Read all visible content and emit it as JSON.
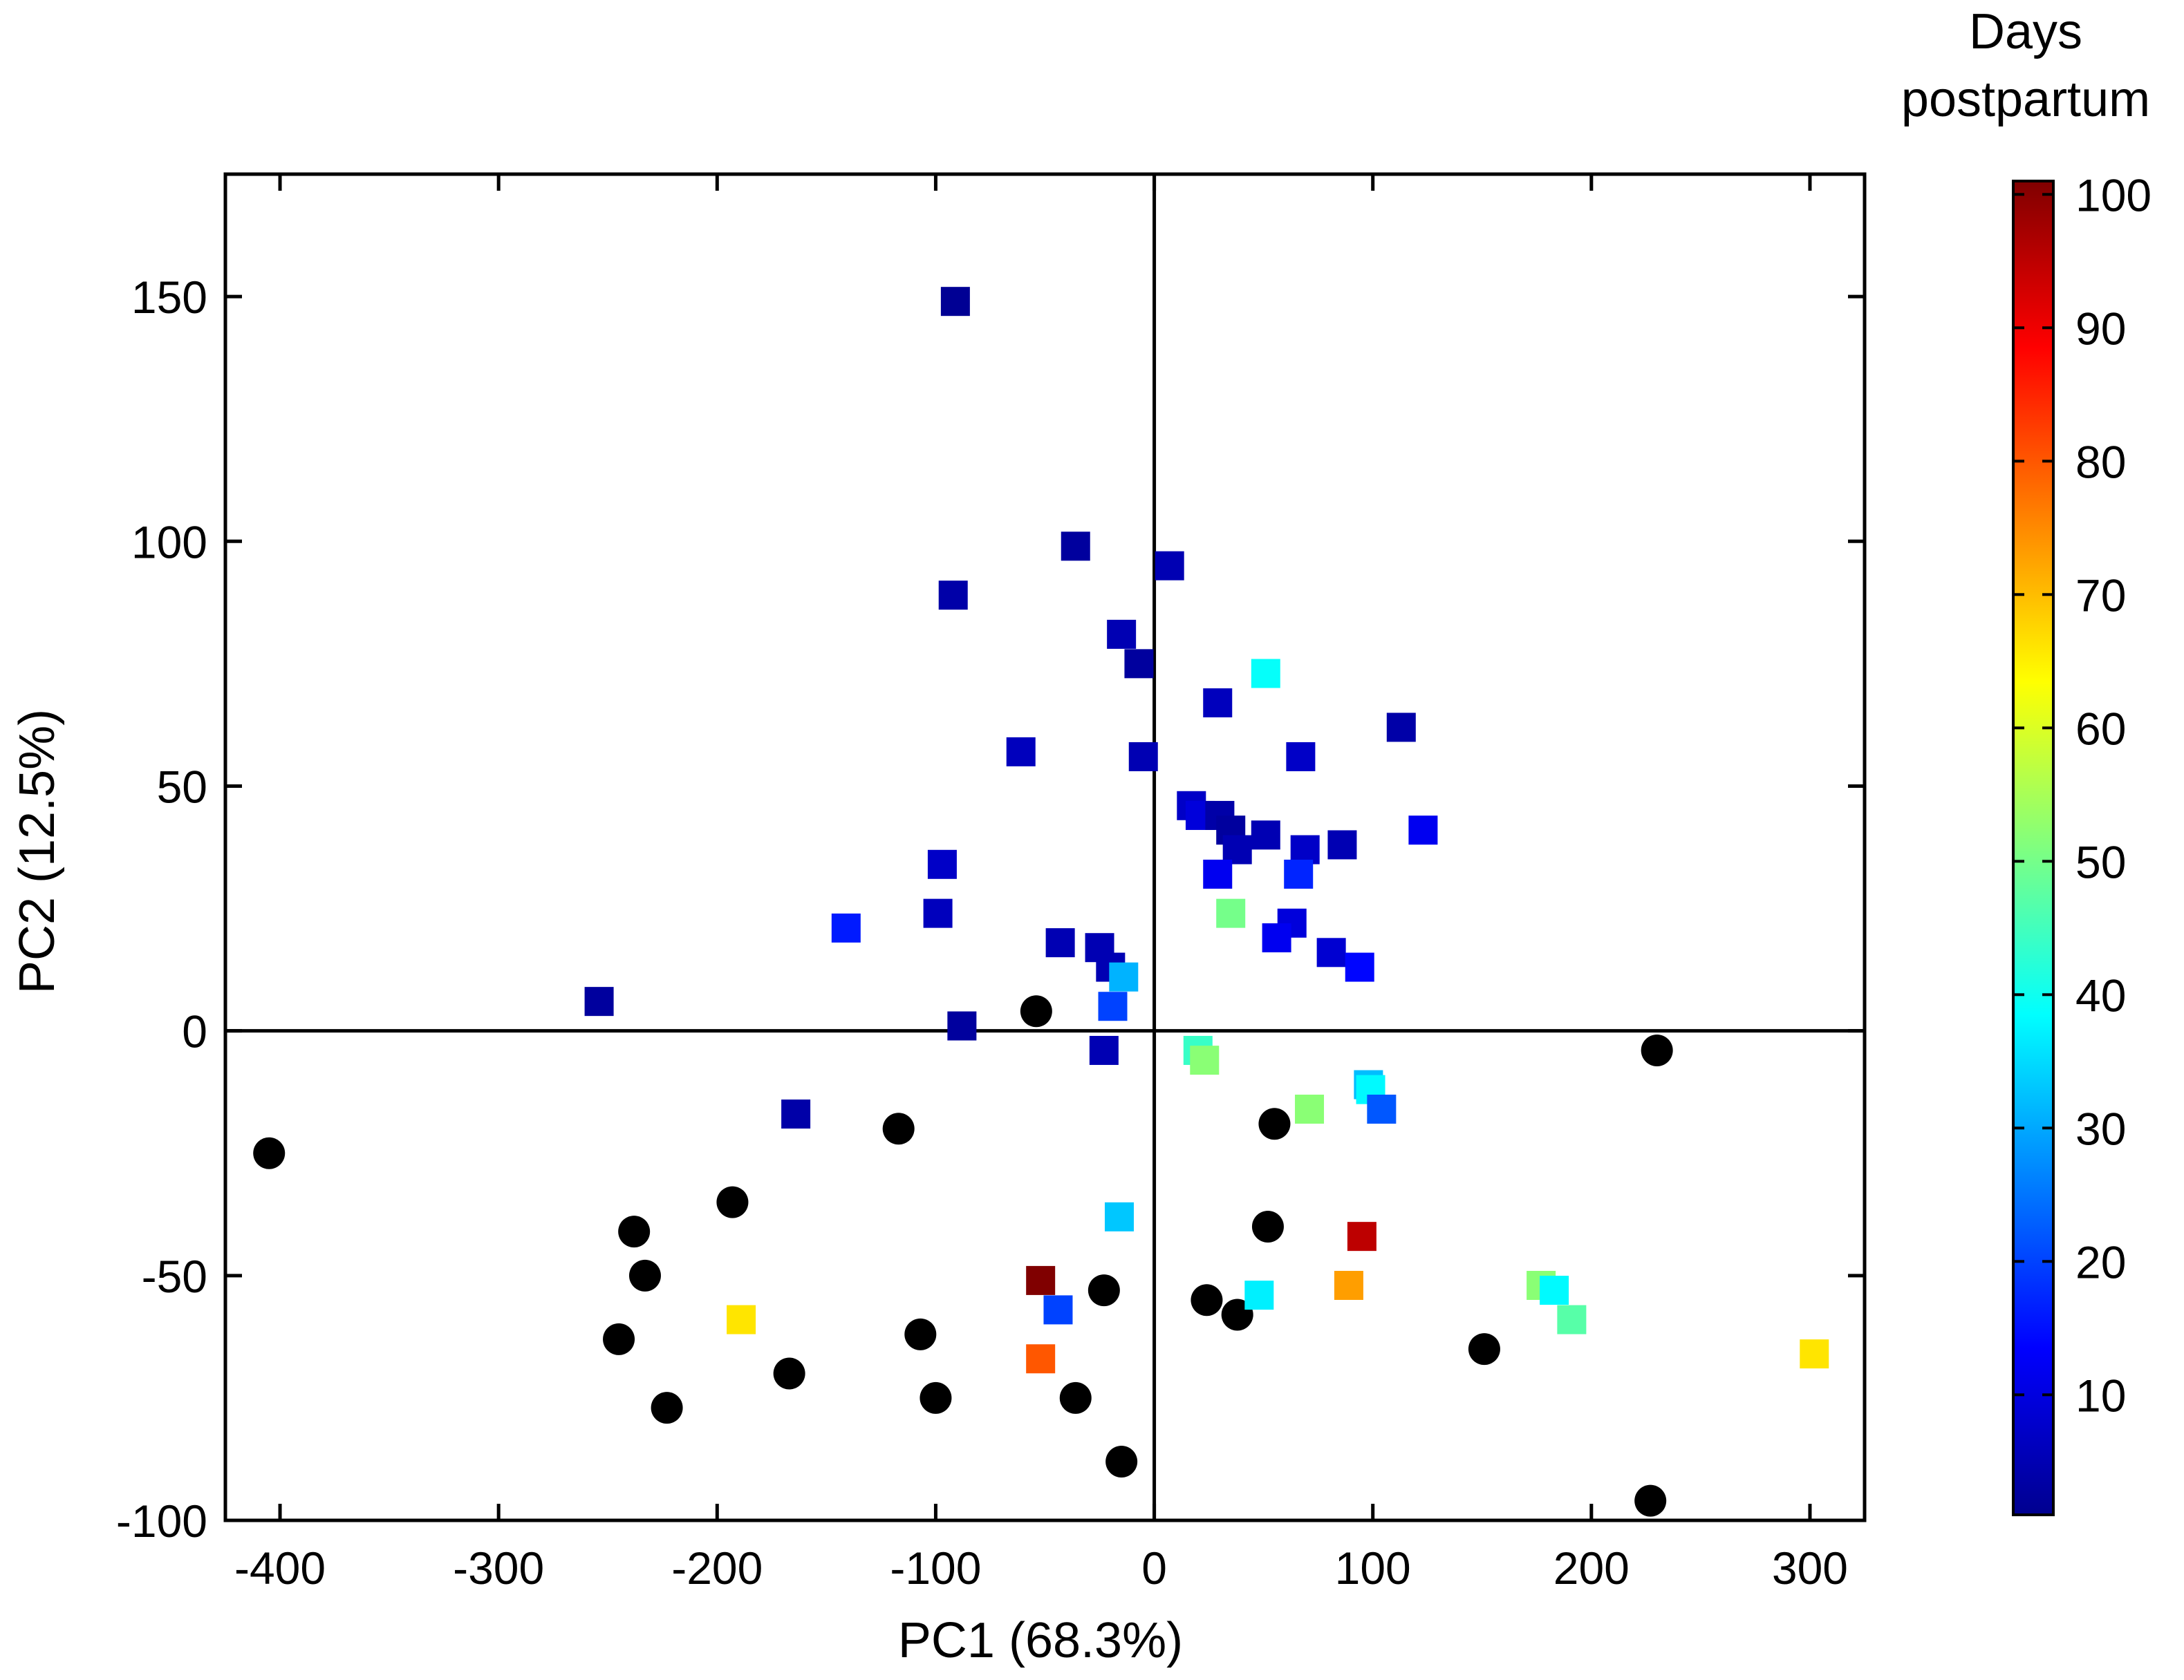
{
  "chart_data": {
    "type": "scatter",
    "xlabel": "PC1 (68.3%)",
    "ylabel": "PC2 (12.5%)",
    "xlim": [
      -425,
      325
    ],
    "ylim": [
      -100,
      175
    ],
    "xticks": [
      -400,
      -300,
      -200,
      -100,
      0,
      100,
      200,
      300
    ],
    "xtick_labels": [
      "-400",
      "-300",
      "-200",
      "-100",
      "0",
      "100",
      "200",
      "300"
    ],
    "yticks": [
      -100,
      -50,
      0,
      50,
      100,
      150
    ],
    "ytick_labels": [
      "-100",
      "-50",
      "0",
      "50",
      "100",
      "150"
    ],
    "reference_lines": {
      "x": 0,
      "y": 0
    },
    "grid": false,
    "colorbar": {
      "title_lines": [
        "Days",
        "postpartum"
      ],
      "range": [
        1,
        101
      ],
      "ticks": [
        10,
        20,
        30,
        40,
        50,
        60,
        70,
        80,
        90,
        100
      ],
      "tick_labels": [
        "10",
        "20",
        "30",
        "40",
        "50",
        "60",
        "70",
        "80",
        "90",
        "100"
      ],
      "colormap": "jet"
    },
    "series": [
      {
        "marker": "circle",
        "color": "#000000",
        "points": [
          [
            -405,
            -25
          ],
          [
            -245,
            -63
          ],
          [
            -238,
            -41
          ],
          [
            -233,
            -50
          ],
          [
            -223,
            -77
          ],
          [
            -193,
            -35
          ],
          [
            -167,
            -70
          ],
          [
            -117,
            -20
          ],
          [
            -107,
            -62
          ],
          [
            -100,
            -75
          ],
          [
            -54,
            4
          ],
          [
            -36,
            -75
          ],
          [
            -23,
            -53
          ],
          [
            -15,
            -88
          ],
          [
            24,
            -55
          ],
          [
            38,
            -58
          ],
          [
            52,
            -40
          ],
          [
            55,
            -19
          ],
          [
            151,
            -65
          ],
          [
            227,
            -96
          ],
          [
            230,
            -4
          ]
        ]
      },
      {
        "marker": "square",
        "color_by": "days_postpartum",
        "points": [
          {
            "x": -91,
            "y": 149,
            "days": 3
          },
          {
            "x": -36,
            "y": 99,
            "days": 4
          },
          {
            "x": 7,
            "y": 95,
            "days": 6
          },
          {
            "x": -92,
            "y": 89,
            "days": 5
          },
          {
            "x": -15,
            "y": 81,
            "days": 6
          },
          {
            "x": -7,
            "y": 75,
            "days": 4
          },
          {
            "x": 51,
            "y": 73,
            "days": 39
          },
          {
            "x": 29,
            "y": 67,
            "days": 7
          },
          {
            "x": 113,
            "y": 62,
            "days": 5
          },
          {
            "x": -61,
            "y": 57,
            "days": 7
          },
          {
            "x": 67,
            "y": 56,
            "days": 8
          },
          {
            "x": -5,
            "y": 56,
            "days": 6
          },
          {
            "x": 17,
            "y": 46,
            "days": 8
          },
          {
            "x": 21,
            "y": 44,
            "days": 10
          },
          {
            "x": 30,
            "y": 44,
            "days": 5
          },
          {
            "x": 35,
            "y": 41,
            "days": 4
          },
          {
            "x": 51,
            "y": 40,
            "days": 6
          },
          {
            "x": 123,
            "y": 41,
            "days": 12
          },
          {
            "x": 86,
            "y": 38,
            "days": 6
          },
          {
            "x": 69,
            "y": 37,
            "days": 8
          },
          {
            "x": 38,
            "y": 37,
            "days": 6
          },
          {
            "x": -97,
            "y": 34,
            "days": 8
          },
          {
            "x": 29,
            "y": 32,
            "days": 12
          },
          {
            "x": 66,
            "y": 32,
            "days": 17
          },
          {
            "x": 35,
            "y": 24,
            "days": 50
          },
          {
            "x": -99,
            "y": 24,
            "days": 7
          },
          {
            "x": 63,
            "y": 22,
            "days": 10
          },
          {
            "x": -141,
            "y": 21,
            "days": 16
          },
          {
            "x": 56,
            "y": 19,
            "days": 12
          },
          {
            "x": -43,
            "y": 18,
            "days": 6
          },
          {
            "x": -25,
            "y": 17,
            "days": 6
          },
          {
            "x": 81,
            "y": 16,
            "days": 9
          },
          {
            "x": 94,
            "y": 13,
            "days": 14
          },
          {
            "x": -20,
            "y": 13,
            "days": 6
          },
          {
            "x": -14,
            "y": 11,
            "days": 31
          },
          {
            "x": -19,
            "y": 5,
            "days": 20
          },
          {
            "x": -254,
            "y": 6,
            "days": 4
          },
          {
            "x": -88,
            "y": 1,
            "days": 4
          },
          {
            "x": -23,
            "y": -4,
            "days": 6
          },
          {
            "x": 20,
            "y": -4,
            "days": 44
          },
          {
            "x": 23,
            "y": -6,
            "days": 52
          },
          {
            "x": 98,
            "y": -11,
            "days": 32
          },
          {
            "x": 99,
            "y": -12,
            "days": 38
          },
          {
            "x": 71,
            "y": -16,
            "days": 52
          },
          {
            "x": 104,
            "y": -16,
            "days": 22
          },
          {
            "x": -164,
            "y": -17,
            "days": 5
          },
          {
            "x": -16,
            "y": -38,
            "days": 33
          },
          {
            "x": 95,
            "y": -42,
            "days": 95
          },
          {
            "x": -52,
            "y": -51,
            "days": 101
          },
          {
            "x": 89,
            "y": -52,
            "days": 73
          },
          {
            "x": 177,
            "y": -52,
            "days": 52
          },
          {
            "x": 48,
            "y": -54,
            "days": 37
          },
          {
            "x": 183,
            "y": -53,
            "days": 38
          },
          {
            "x": -44,
            "y": -57,
            "days": 20
          },
          {
            "x": 191,
            "y": -59,
            "days": 47
          },
          {
            "x": -189,
            "y": -59,
            "days": 66
          },
          {
            "x": -52,
            "y": -67,
            "days": 80
          },
          {
            "x": 302,
            "y": -66,
            "days": 66
          }
        ]
      }
    ]
  }
}
